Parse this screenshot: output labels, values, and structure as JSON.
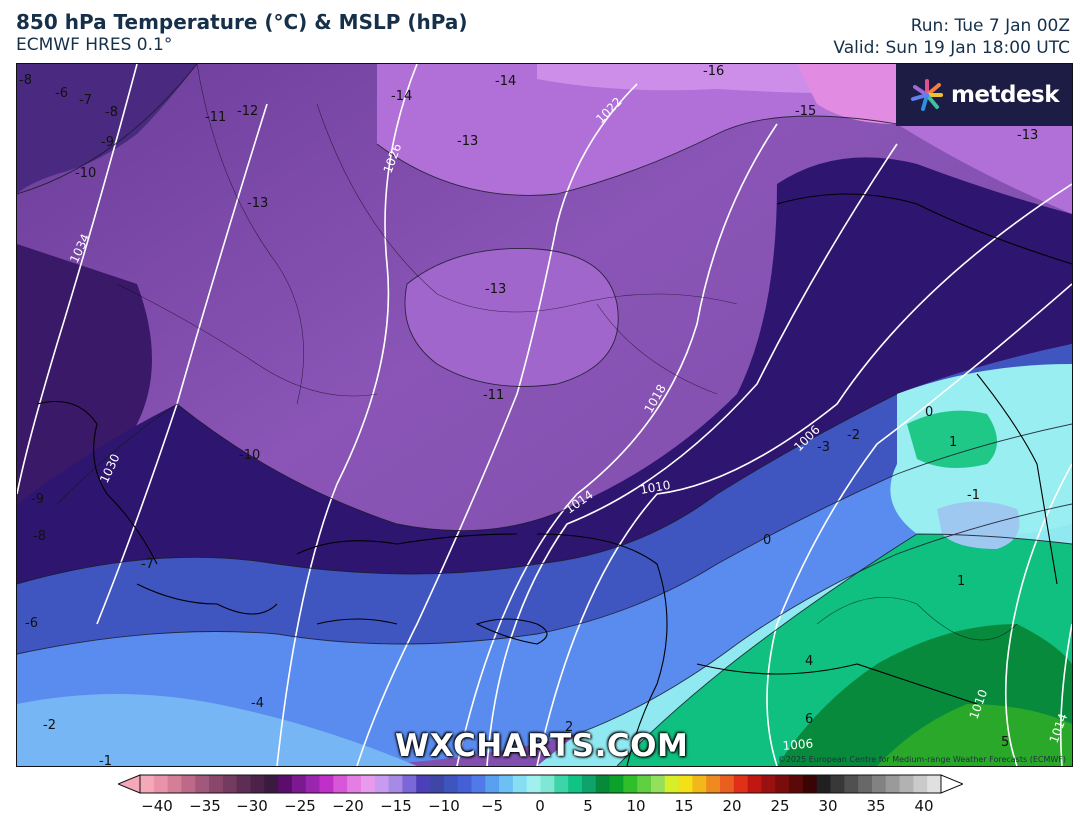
{
  "header": {
    "title": "850 hPa Temperature (°C) & MSLP (hPa)",
    "model": "ECMWF HRES 0.1°",
    "run": "Run: Tue 7 Jan 00Z",
    "valid": "Valid: Sun 19 Jan 18:00 UTC"
  },
  "brand": {
    "logo_text": "metdesk",
    "watermark": "WXCHARTS.COM",
    "copyright": "©2025 European Centre for Medium-range Weather Forecasts (ECMWF)"
  },
  "temperature_labels": [
    "-8",
    "-6",
    "-7",
    "-8",
    "-9",
    "-10",
    "-11",
    "-12",
    "-13",
    "-14",
    "-14",
    "-16",
    "-15",
    "-13",
    "-13",
    "-13",
    "-11",
    "-10",
    "-9",
    "-8",
    "-7",
    "-6",
    "-4",
    "-2",
    "-1",
    "-3",
    "-2",
    "0",
    "0",
    "1",
    "-1",
    "1",
    "4",
    "6",
    "5",
    "2"
  ],
  "pressure_labels": [
    "1034",
    "1030",
    "1026",
    "1022",
    "1018",
    "1014",
    "1010",
    "1006",
    "1006",
    "1010",
    "1014"
  ],
  "colorbar": {
    "ticks": [
      "−40",
      "−35",
      "−30",
      "−25",
      "−20",
      "−15",
      "−10",
      "−5",
      "0",
      "5",
      "10",
      "15",
      "20",
      "25",
      "30",
      "35",
      "40"
    ],
    "colors": [
      "#f5a8b8",
      "#e993aa",
      "#d47e98",
      "#bc6a88",
      "#a2587a",
      "#8a476c",
      "#743a60",
      "#5e2d55",
      "#4c2249",
      "#3a1a40",
      "#5b0d6e",
      "#7a1a8e",
      "#9a25ae",
      "#c030c8",
      "#d857d8",
      "#e47ee4",
      "#ea9aec",
      "#c99bf0",
      "#a78ae6",
      "#7a68d8",
      "#4c3fb8",
      "#3f46a8",
      "#3d55bd",
      "#4560d6",
      "#4f7ae8",
      "#5aa0f0",
      "#6cc0f4",
      "#86def2",
      "#9ff0ee",
      "#7ee8d2",
      "#3dd4a8",
      "#10c486",
      "#0ea36a",
      "#068a3a",
      "#0aa22a",
      "#2fbf2a",
      "#60d040",
      "#94e05a",
      "#d7ef2a",
      "#f3e018",
      "#f2b81a",
      "#ee8a1e",
      "#ea5e20",
      "#e03018",
      "#c01810",
      "#9a1010",
      "#7a0c0c",
      "#5a0808",
      "#3a0404",
      "#202020",
      "#383838",
      "#505050",
      "#686868",
      "#828282",
      "#9a9a9a",
      "#b2b2b2",
      "#cacaca",
      "#e0e0e0"
    ]
  }
}
